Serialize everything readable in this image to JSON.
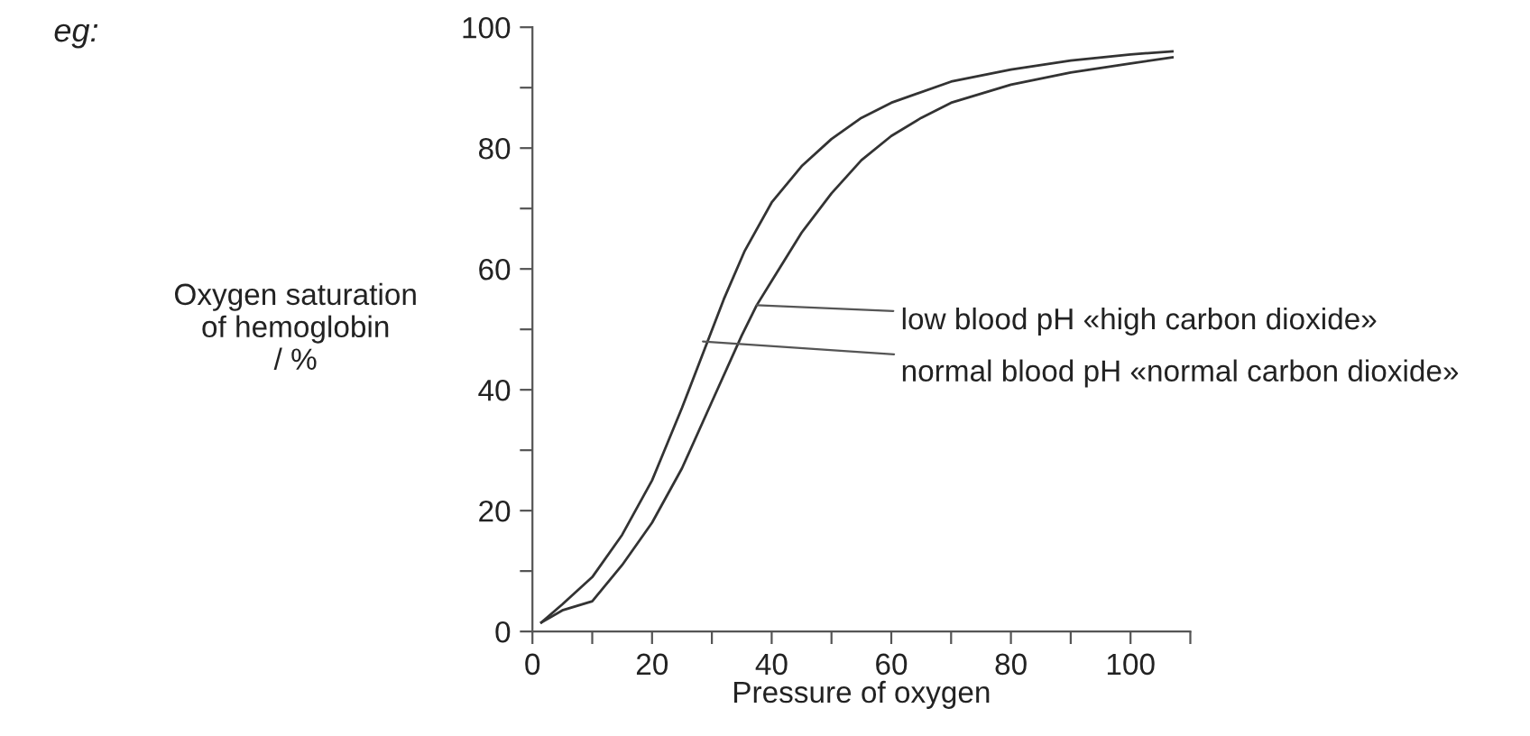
{
  "chart_data": {
    "type": "line",
    "xlabel": "Pressure of oxygen",
    "ylabel": "Oxygen saturation\nof hemoglobin\n/ %",
    "xlim": [
      0,
      110
    ],
    "ylim": [
      0,
      100
    ],
    "xticks": [
      0,
      {
        "value": 10,
        "label": null
      },
      20,
      {
        "value": 30,
        "label": null
      },
      40,
      {
        "value": 50,
        "label": null
      },
      60,
      {
        "value": 70,
        "label": null
      },
      80,
      {
        "value": 90,
        "label": null
      },
      100,
      {
        "value": 110,
        "label": null
      }
    ],
    "yticks": [
      0,
      {
        "value": 10,
        "label": null
      },
      20,
      {
        "value": 30,
        "label": null
      },
      40,
      {
        "value": 50,
        "label": null
      },
      60,
      {
        "value": 70,
        "label": null
      },
      80,
      {
        "value": 90,
        "label": null
      },
      100
    ],
    "grid": false,
    "legend": false,
    "marker": "none",
    "line_style": "solid",
    "series": [
      {
        "color": "#333333",
        "x": [
          1.5,
          5,
          10,
          15,
          20,
          25,
          28.5,
          32,
          35.5,
          40,
          45,
          50,
          55,
          60,
          70,
          80,
          90,
          100,
          107
        ],
        "values": [
          1.5,
          4.5,
          9,
          16,
          25,
          37,
          46,
          55,
          63,
          71,
          77,
          81.5,
          85,
          87.5,
          91,
          93,
          94.5,
          95.5,
          96
        ]
      },
      {
        "color": "#333333",
        "x": [
          1.5,
          5,
          10,
          15,
          20,
          25,
          30,
          35,
          37.5,
          40,
          45,
          50,
          55,
          60,
          65,
          70,
          80,
          90,
          100,
          107
        ],
        "values": [
          1.5,
          3.5,
          5,
          11,
          18,
          27,
          38,
          49,
          54,
          58,
          66,
          72.5,
          78,
          82,
          85,
          87.5,
          90.5,
          92.5,
          94,
          95
        ]
      }
    ],
    "annotations": [
      "eg:",
      {
        "text": "low blood pH «high carbon dioxide»",
        "x": 37.5,
        "y": 54
      },
      {
        "text": "normal blood pH «normal carbon dioxide»",
        "x": 28.5,
        "y": 48
      }
    ]
  }
}
